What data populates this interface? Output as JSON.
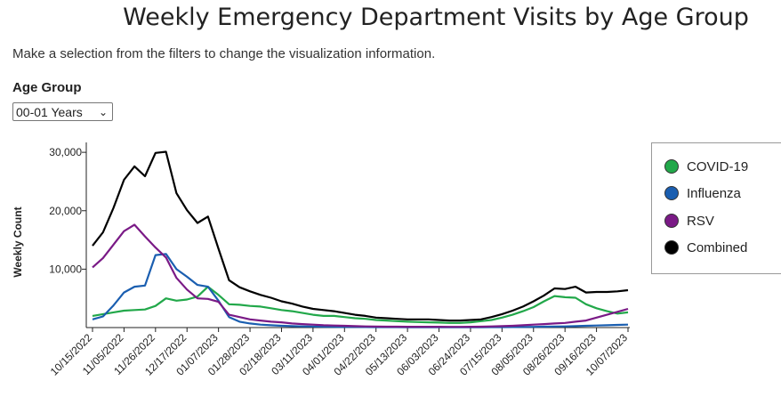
{
  "page": {
    "title": "Weekly Emergency Department Visits by Age Group",
    "subtitle": "Make a selection from the filters to change the visualization information.",
    "filter_label": "Age Group",
    "filter_value": "00-01 Years",
    "select_icon": "chevron-down-icon"
  },
  "legend": {
    "items": [
      {
        "label": "COVID-19",
        "color": "#22a84a"
      },
      {
        "label": "Influenza",
        "color": "#1a5eb0"
      },
      {
        "label": "RSV",
        "color": "#7a1a86"
      },
      {
        "label": "Combined",
        "color": "#000000"
      }
    ]
  },
  "chart_data": {
    "type": "line",
    "ylabel": "Weekly Count",
    "ylim": [
      0,
      32000
    ],
    "yticks": [
      10000,
      20000,
      30000
    ],
    "ytick_labels": [
      "10,000",
      "20,000",
      "30,000"
    ],
    "x_tick_labels": [
      "10/15/2022",
      "11/05/2022",
      "11/26/2022",
      "12/17/2022",
      "01/07/2023",
      "01/28/2023",
      "02/18/2023",
      "03/11/2023",
      "04/01/2023",
      "04/22/2023",
      "05/13/2023",
      "06/03/2023",
      "06/24/2023",
      "07/15/2023",
      "08/05/2023",
      "08/26/2023",
      "09/16/2023",
      "10/07/2023"
    ],
    "legend_position": "right",
    "series": [
      {
        "name": "COVID-19",
        "color": "#22a84a",
        "values": [
          2000,
          2300,
          2600,
          2900,
          3000,
          3100,
          3700,
          5000,
          4600,
          4800,
          5300,
          7000,
          5600,
          4000,
          3900,
          3700,
          3600,
          3300,
          3000,
          2800,
          2500,
          2200,
          2000,
          2000,
          1800,
          1600,
          1500,
          1300,
          1200,
          1100,
          1000,
          950,
          900,
          850,
          800,
          800,
          900,
          1100,
          1300,
          1700,
          2200,
          2800,
          3500,
          4500,
          5400,
          5200,
          5100,
          4000,
          3300,
          2800,
          2400,
          2600
        ]
      },
      {
        "name": "Influenza",
        "color": "#1a5eb0",
        "values": [
          1400,
          1900,
          3800,
          6000,
          7000,
          7200,
          12400,
          12600,
          10000,
          8700,
          7300,
          7000,
          4600,
          1800,
          1000,
          700,
          500,
          400,
          300,
          250,
          200,
          180,
          150,
          120,
          100,
          100,
          90,
          80,
          70,
          70,
          60,
          60,
          60,
          60,
          50,
          50,
          60,
          60,
          70,
          80,
          90,
          100,
          120,
          150,
          180,
          200,
          250,
          300,
          350,
          400,
          450,
          500
        ]
      },
      {
        "name": "RSV",
        "color": "#7a1a86",
        "values": [
          10300,
          11900,
          14200,
          16500,
          17600,
          15600,
          13700,
          12000,
          8500,
          6500,
          5000,
          4900,
          4400,
          2200,
          1800,
          1400,
          1200,
          1000,
          900,
          700,
          600,
          500,
          400,
          350,
          300,
          250,
          200,
          180,
          150,
          150,
          140,
          140,
          130,
          130,
          120,
          120,
          130,
          150,
          200,
          250,
          300,
          400,
          500,
          600,
          700,
          800,
          1000,
          1200,
          1700,
          2200,
          2700,
          3200
        ]
      },
      {
        "name": "Combined",
        "color": "#000000",
        "values": [
          14000,
          16300,
          20500,
          25300,
          27600,
          25900,
          29900,
          30100,
          23000,
          20100,
          17900,
          19000,
          13500,
          8100,
          6900,
          6200,
          5600,
          5100,
          4500,
          4100,
          3600,
          3200,
          3000,
          2800,
          2500,
          2200,
          2000,
          1700,
          1600,
          1500,
          1400,
          1400,
          1400,
          1300,
          1200,
          1200,
          1300,
          1400,
          1800,
          2300,
          2900,
          3600,
          4500,
          5500,
          6700,
          6600,
          7000,
          6000,
          6100,
          6100,
          6200,
          6400
        ]
      }
    ]
  }
}
